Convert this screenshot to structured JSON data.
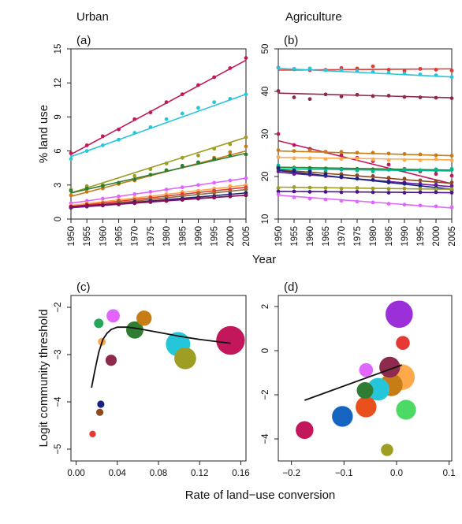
{
  "figure": {
    "col_titles": [
      "Urban",
      "Agriculture"
    ],
    "shared_x_label_top": "Year",
    "shared_x_label_bottom": "Rate of land−use conversion"
  },
  "chart_data": [
    {
      "type": "scatter",
      "panel_label": "(a)",
      "title": "Urban",
      "xlabel": "",
      "ylabel": "% land use",
      "xlim": [
        1950,
        2005
      ],
      "ylim": [
        0,
        15
      ],
      "xticks": [
        "1950",
        "1955",
        "1960",
        "1965",
        "1970",
        "1975",
        "1980",
        "1985",
        "1990",
        "1995",
        "2000",
        "2005"
      ],
      "yticks": [
        "0",
        "3",
        "6",
        "9",
        "12",
        "15"
      ],
      "x": [
        1950,
        1955,
        1960,
        1965,
        1970,
        1975,
        1980,
        1985,
        1990,
        1995,
        2000,
        2005
      ],
      "series": [
        {
          "color": "#c2185b",
          "values": [
            5.8,
            6.5,
            7.3,
            7.9,
            8.8,
            9.4,
            10.3,
            11.0,
            11.8,
            12.5,
            13.3,
            14.2
          ],
          "fit": [
            5.7,
            14.0
          ]
        },
        {
          "color": "#26c6da",
          "values": [
            5.3,
            6.0,
            6.5,
            7.0,
            7.6,
            8.1,
            8.8,
            9.3,
            9.8,
            10.3,
            10.6,
            11.0
          ],
          "fit": [
            5.5,
            11.0
          ]
        },
        {
          "color": "#9e9d24",
          "values": [
            2.6,
            2.9,
            3.0,
            3.1,
            3.8,
            4.4,
            4.9,
            5.4,
            5.6,
            6.2,
            6.6,
            7.2
          ],
          "fit": [
            2.3,
            7.2
          ]
        },
        {
          "color": "#c77c15",
          "values": [
            2.1,
            2.4,
            2.7,
            3.1,
            3.4,
            3.9,
            4.3,
            4.6,
            5.0,
            5.4,
            5.9,
            6.4
          ],
          "fit": [
            2.0,
            6.0
          ]
        },
        {
          "color": "#2e7d32",
          "values": [
            2.5,
            2.7,
            2.9,
            3.2,
            3.5,
            3.9,
            4.3,
            4.7,
            5.0,
            5.3,
            5.6,
            5.7
          ],
          "fit": [
            2.3,
            5.8
          ]
        },
        {
          "color": "#e066ff",
          "values": [
            1.4,
            1.6,
            1.8,
            2.0,
            2.2,
            2.4,
            2.6,
            2.8,
            3.0,
            3.2,
            3.4,
            3.6
          ],
          "fit": [
            1.4,
            3.6
          ]
        },
        {
          "color": "#ffa94d",
          "values": [
            1.2,
            1.4,
            1.5,
            1.7,
            1.9,
            2.0,
            2.2,
            2.4,
            2.5,
            2.7,
            2.9,
            3.0
          ],
          "fit": [
            1.2,
            3.0
          ]
        },
        {
          "color": "#e53935",
          "values": [
            1.1,
            1.3,
            1.4,
            1.6,
            1.7,
            1.9,
            2.0,
            2.2,
            2.3,
            2.5,
            2.6,
            2.8
          ],
          "fit": [
            1.1,
            2.8
          ]
        },
        {
          "color": "#8d6e3a",
          "values": [
            1.0,
            1.2,
            1.3,
            1.5,
            1.6,
            1.7,
            1.9,
            2.0,
            2.2,
            2.3,
            2.4,
            2.6
          ],
          "fit": [
            1.0,
            2.6
          ]
        },
        {
          "color": "#1a237e",
          "values": [
            1.0,
            1.1,
            1.2,
            1.3,
            1.5,
            1.6,
            1.7,
            1.8,
            1.9,
            2.0,
            2.2,
            2.3
          ],
          "fit": [
            1.0,
            2.3
          ]
        },
        {
          "color": "#6a1b9a",
          "values": [
            1.0,
            1.1,
            1.2,
            1.3,
            1.4,
            1.5,
            1.6,
            1.7,
            1.8,
            1.9,
            2.0,
            2.1
          ],
          "fit": [
            1.0,
            2.1
          ]
        },
        {
          "color": "#880e4f",
          "values": [
            1.1,
            1.2,
            1.2,
            1.3,
            1.4,
            1.5,
            1.6,
            1.7,
            1.8,
            1.9,
            2.0,
            2.1
          ],
          "fit": [
            1.1,
            2.1
          ]
        }
      ]
    },
    {
      "type": "scatter",
      "panel_label": "(b)",
      "title": "Agriculture",
      "xlabel": "",
      "ylabel": "",
      "xlim": [
        1950,
        2005
      ],
      "ylim": [
        10,
        50
      ],
      "xticks": [
        "1950",
        "1955",
        "1960",
        "1965",
        "1970",
        "1975",
        "1980",
        "1985",
        "1990",
        "1995",
        "2000",
        "2005"
      ],
      "yticks": [
        "10",
        "20",
        "30",
        "40",
        "50"
      ],
      "x": [
        1950,
        1955,
        1960,
        1965,
        1970,
        1975,
        1980,
        1985,
        1990,
        1995,
        2000,
        2005
      ],
      "series": [
        {
          "color": "#e53935",
          "values": [
            45.6,
            45.2,
            45.0,
            45.1,
            45.5,
            45.4,
            45.9,
            45.1,
            44.8,
            45.3,
            45.1,
            44.9
          ],
          "fit": [
            45.0,
            45.3
          ]
        },
        {
          "color": "#26c6da",
          "values": [
            45.5,
            45.3,
            45.4,
            45.0,
            45.0,
            44.8,
            44.6,
            44.4,
            44.2,
            44.0,
            43.8,
            43.4
          ],
          "fit": [
            45.4,
            43.4
          ]
        },
        {
          "color": "#8e2a4e",
          "values": [
            40.1,
            38.6,
            38.2,
            39.3,
            38.8,
            39.2,
            38.9,
            39.0,
            38.7,
            38.6,
            38.5,
            38.4
          ],
          "fit": [
            39.6,
            38.5
          ]
        },
        {
          "color": "#c2185b",
          "values": [
            30.0,
            27.4,
            26.5,
            25.8,
            25.0,
            24.4,
            23.6,
            22.8,
            21.8,
            21.2,
            20.6,
            20.2
          ],
          "fit": [
            28.4,
            18.3
          ]
        },
        {
          "color": "#c77c15",
          "values": [
            26.2,
            26.0,
            26.1,
            25.8,
            25.8,
            25.6,
            25.6,
            25.4,
            25.3,
            25.2,
            25.0,
            24.9
          ],
          "fit": [
            26.0,
            24.9
          ]
        },
        {
          "color": "#ffa94d",
          "values": [
            24.6,
            24.3,
            24.3,
            24.1,
            24.1,
            24.2,
            24.0,
            23.9,
            23.9,
            23.8,
            24.1,
            23.8
          ],
          "fit": [
            24.5,
            23.9
          ]
        },
        {
          "color": "#2e7d32",
          "values": [
            22.3,
            22.1,
            22.0,
            21.9,
            21.8,
            21.8,
            21.7,
            21.6,
            21.5,
            21.4,
            21.4,
            21.6
          ],
          "fit": [
            22.2,
            21.5
          ]
        },
        {
          "color": "#00b894",
          "values": [
            22.6,
            21.9,
            21.4,
            21.2,
            21.6,
            21.4,
            21.2,
            21.6,
            21.7,
            21.5,
            21.7,
            21.8
          ],
          "fit": [
            21.8,
            21.3
          ]
        },
        {
          "color": "#8d4a1e",
          "values": [
            21.8,
            21.2,
            21.0,
            20.7,
            20.6,
            20.3,
            20.1,
            19.7,
            19.5,
            19.1,
            18.9,
            18.6
          ],
          "fit": [
            21.6,
            18.4
          ]
        },
        {
          "color": "#6a1b9a",
          "values": [
            21.2,
            20.6,
            20.4,
            20.1,
            19.8,
            19.5,
            19.2,
            18.9,
            18.6,
            18.3,
            18.1,
            17.8
          ],
          "fit": [
            21.0,
            17.6
          ]
        },
        {
          "color": "#1a237e",
          "values": [
            22.0,
            21.4,
            21.2,
            20.5,
            20.0,
            19.5,
            19.2,
            18.6,
            18.3,
            17.8,
            17.4,
            16.8
          ],
          "fit": [
            21.4,
            17.0
          ]
        },
        {
          "color": "#9e9d24",
          "values": [
            17.3,
            17.5,
            17.4,
            17.3,
            17.2,
            17.3,
            17.2,
            17.1,
            17.2,
            17.1,
            17.0,
            17.0
          ],
          "fit": [
            17.5,
            17.0
          ]
        },
        {
          "color": "#4a148c",
          "values": [
            16.5,
            16.5,
            16.4,
            16.4,
            16.3,
            16.4,
            16.3,
            16.2,
            16.2,
            16.3,
            16.3,
            16.2
          ],
          "fit": [
            16.5,
            16.2
          ]
        },
        {
          "color": "#e066ff",
          "values": [
            15.8,
            15.1,
            14.8,
            14.6,
            14.3,
            14.1,
            13.9,
            13.6,
            13.4,
            13.2,
            13.0,
            12.8
          ],
          "fit": [
            15.6,
            12.6
          ]
        }
      ]
    },
    {
      "type": "scatter",
      "panel_label": "(c)",
      "title": "",
      "xlabel": "",
      "ylabel": "Logit community threshold",
      "xlim": [
        -0.005,
        0.165
      ],
      "ylim": [
        -5.25,
        -1.75
      ],
      "xticks": [
        "0.00",
        "0.04",
        "0.08",
        "0.12",
        "0.16"
      ],
      "yticks": [
        "−5",
        "−4",
        "−3",
        "−2"
      ],
      "points": [
        {
          "x": 0.15,
          "y": -2.7,
          "size": 1.0,
          "color": "#c2185b"
        },
        {
          "x": 0.099,
          "y": -2.78,
          "size": 0.7,
          "color": "#26c6da"
        },
        {
          "x": 0.106,
          "y": -3.08,
          "size": 0.55,
          "color": "#9e9d24"
        },
        {
          "x": 0.066,
          "y": -2.23,
          "size": 0.25,
          "color": "#c77c15"
        },
        {
          "x": 0.057,
          "y": -2.48,
          "size": 0.33,
          "color": "#2e7d32"
        },
        {
          "x": 0.036,
          "y": -2.18,
          "size": 0.18,
          "color": "#e066ff"
        },
        {
          "x": 0.034,
          "y": -3.12,
          "size": 0.12,
          "color": "#8e2a4e"
        },
        {
          "x": 0.022,
          "y": -2.34,
          "size": 0.08,
          "color": "#26a65b"
        },
        {
          "x": 0.025,
          "y": -2.73,
          "size": 0.05,
          "color": "#ffa94d"
        },
        {
          "x": 0.024,
          "y": -4.05,
          "size": 0.04,
          "color": "#1a237e"
        },
        {
          "x": 0.023,
          "y": -4.22,
          "size": 0.04,
          "color": "#8d4a1e"
        },
        {
          "x": 0.016,
          "y": -4.68,
          "size": 0.03,
          "color": "#e53935"
        }
      ],
      "fit_curve": {
        "x": [
          0.015,
          0.018,
          0.022,
          0.026,
          0.03,
          0.034,
          0.04,
          0.05,
          0.06,
          0.08,
          0.1,
          0.12,
          0.15
        ],
        "y": [
          -3.7,
          -3.36,
          -2.95,
          -2.68,
          -2.55,
          -2.47,
          -2.42,
          -2.42,
          -2.45,
          -2.53,
          -2.61,
          -2.68,
          -2.76
        ]
      }
    },
    {
      "type": "scatter",
      "panel_label": "(d)",
      "title": "",
      "xlabel": "",
      "ylabel": "",
      "xlim": [
        -0.225,
        0.105
      ],
      "ylim": [
        -5.0,
        2.5
      ],
      "xticks": [
        "−0.2",
        "−0.1",
        "0.0",
        "0.1"
      ],
      "yticks": [
        "−4",
        "−2",
        "0",
        "2"
      ],
      "points": [
        {
          "x": 0.005,
          "y": 1.65,
          "size": 0.9,
          "color": "#9b30d9"
        },
        {
          "x": 0.01,
          "y": -1.2,
          "size": 0.8,
          "color": "#ffa94d"
        },
        {
          "x": -0.01,
          "y": -1.55,
          "size": 0.6,
          "color": "#c77c15"
        },
        {
          "x": -0.035,
          "y": -1.75,
          "size": 0.6,
          "color": "#26c6da"
        },
        {
          "x": -0.013,
          "y": -0.75,
          "size": 0.5,
          "color": "#8e2a4e"
        },
        {
          "x": -0.058,
          "y": -2.55,
          "size": 0.5,
          "color": "#e8501e"
        },
        {
          "x": -0.103,
          "y": -2.98,
          "size": 0.5,
          "color": "#1565c0"
        },
        {
          "x": 0.018,
          "y": -2.68,
          "size": 0.45,
          "color": "#4cd964"
        },
        {
          "x": -0.175,
          "y": -3.6,
          "size": 0.35,
          "color": "#c2185b"
        },
        {
          "x": -0.06,
          "y": -1.8,
          "size": 0.3,
          "color": "#2e7d32"
        },
        {
          "x": -0.058,
          "y": -0.88,
          "size": 0.2,
          "color": "#e066ff"
        },
        {
          "x": 0.012,
          "y": 0.35,
          "size": 0.2,
          "color": "#e53935"
        },
        {
          "x": -0.018,
          "y": -4.5,
          "size": 0.15,
          "color": "#9e9d24"
        }
      ],
      "fit_line": {
        "x": [
          -0.175,
          0.01
        ],
        "y": [
          -2.25,
          -0.65
        ]
      }
    }
  ]
}
